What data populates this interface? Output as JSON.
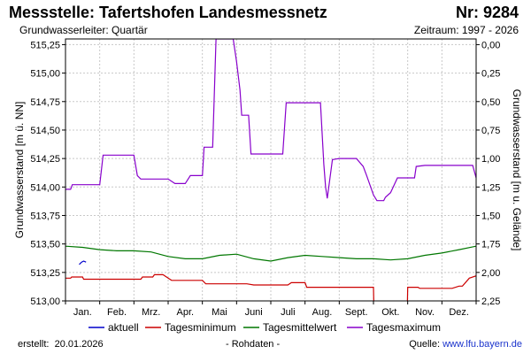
{
  "header": {
    "title": "Messstelle: Tafertshofen Landesmessnetz",
    "number": "Nr: 9284",
    "subtitle_left": "Grundwasserleiter: Quartär",
    "subtitle_right": "Zeitraum: 1997 - 2026"
  },
  "footer": {
    "created_label": "erstellt:",
    "created_date": "20.01.2026",
    "raw": "- Rohdaten -",
    "source_label": "Quelle:",
    "source_url": "www.lfu.bayern.de"
  },
  "colors": {
    "aktuell": "#0000cc",
    "min": "#cc0000",
    "mean": "#007700",
    "max": "#8800cc",
    "grid": "#c8c8c8"
  },
  "chart_data": {
    "type": "line",
    "ylabel_left": "Grundwasserstand [m ü. NN]",
    "ylabel_right": "Grundwasserstand [m u. Gelände]",
    "ylim": [
      513.0,
      515.3
    ],
    "yticks_left": [
      "515,25",
      "515,00",
      "514,75",
      "514,50",
      "514,25",
      "514,00",
      "513,75",
      "513,50",
      "513,25",
      "513,00"
    ],
    "yticks_left_values": [
      515.25,
      515.0,
      514.75,
      514.5,
      514.25,
      514.0,
      513.75,
      513.5,
      513.25,
      513.0
    ],
    "yticks_right": [
      "0,00",
      "0,25",
      "0,50",
      "0,75",
      "1,00",
      "1,25",
      "1,50",
      "1,75",
      "2,00",
      "2,25"
    ],
    "yticks_right_depths": [
      0.0,
      0.25,
      0.5,
      0.75,
      1.0,
      1.25,
      1.5,
      1.75,
      2.0,
      2.25
    ],
    "ground_level": 515.25,
    "months": [
      "Jan.",
      "Feb.",
      "Mrz.",
      "Apr.",
      "Mai",
      "Juni",
      "Juli",
      "Aug.",
      "Sept.",
      "Okt.",
      "Nov.",
      "Dez."
    ],
    "series": [
      {
        "name": "aktuell",
        "key": "aktuell",
        "points": [
          [
            0.4,
            513.32
          ],
          [
            0.47,
            513.34
          ],
          [
            0.53,
            513.35
          ],
          [
            0.6,
            513.34
          ]
        ]
      },
      {
        "name": "Tagesminimum",
        "key": "min",
        "points": [
          [
            0.0,
            513.2
          ],
          [
            0.15,
            513.2
          ],
          [
            0.18,
            513.21
          ],
          [
            0.5,
            513.21
          ],
          [
            0.53,
            513.19
          ],
          [
            1.0,
            513.19
          ],
          [
            1.5,
            513.19
          ],
          [
            2.0,
            513.19
          ],
          [
            2.2,
            513.19
          ],
          [
            2.25,
            513.21
          ],
          [
            2.55,
            513.21
          ],
          [
            2.6,
            513.23
          ],
          [
            2.85,
            513.23
          ],
          [
            3.0,
            513.2
          ],
          [
            3.1,
            513.18
          ],
          [
            3.5,
            513.18
          ],
          [
            4.0,
            513.18
          ],
          [
            4.1,
            513.15
          ],
          [
            4.7,
            513.15
          ],
          [
            5.0,
            513.15
          ],
          [
            5.3,
            513.15
          ],
          [
            5.5,
            513.14
          ],
          [
            6.0,
            513.14
          ],
          [
            6.5,
            513.14
          ],
          [
            6.6,
            513.16
          ],
          [
            7.0,
            513.16
          ],
          [
            7.05,
            513.12
          ],
          [
            8.0,
            513.12
          ],
          [
            9.0,
            513.12
          ],
          [
            9.01,
            512.97
          ],
          [
            9.99,
            512.97
          ],
          [
            10.0,
            513.12
          ],
          [
            10.3,
            513.12
          ],
          [
            10.35,
            513.11
          ],
          [
            11.3,
            513.11
          ],
          [
            11.5,
            513.13
          ],
          [
            11.6,
            513.13
          ],
          [
            11.8,
            513.2
          ],
          [
            12.0,
            513.22
          ]
        ]
      },
      {
        "name": "Tagesmittelwert",
        "key": "mean",
        "points": [
          [
            0.0,
            513.48
          ],
          [
            0.5,
            513.47
          ],
          [
            1.0,
            513.45
          ],
          [
            1.5,
            513.44
          ],
          [
            2.0,
            513.44
          ],
          [
            2.5,
            513.43
          ],
          [
            3.0,
            513.39
          ],
          [
            3.5,
            513.37
          ],
          [
            4.0,
            513.37
          ],
          [
            4.5,
            513.4
          ],
          [
            5.0,
            513.41
          ],
          [
            5.5,
            513.37
          ],
          [
            6.0,
            513.35
          ],
          [
            6.5,
            513.38
          ],
          [
            7.0,
            513.4
          ],
          [
            7.5,
            513.39
          ],
          [
            8.0,
            513.38
          ],
          [
            8.5,
            513.37
          ],
          [
            9.0,
            513.37
          ],
          [
            9.5,
            513.36
          ],
          [
            10.0,
            513.37
          ],
          [
            10.5,
            513.4
          ],
          [
            11.0,
            513.42
          ],
          [
            11.5,
            513.45
          ],
          [
            12.0,
            513.48
          ]
        ]
      },
      {
        "name": "Tagesmaximum",
        "key": "max",
        "points": [
          [
            0.0,
            513.98
          ],
          [
            0.15,
            513.98
          ],
          [
            0.2,
            514.02
          ],
          [
            1.0,
            514.02
          ],
          [
            1.1,
            514.28
          ],
          [
            1.5,
            514.28
          ],
          [
            2.0,
            514.28
          ],
          [
            2.1,
            514.1
          ],
          [
            2.2,
            514.07
          ],
          [
            2.5,
            514.07
          ],
          [
            3.0,
            514.07
          ],
          [
            3.2,
            514.03
          ],
          [
            3.5,
            514.03
          ],
          [
            3.65,
            514.1
          ],
          [
            4.0,
            514.1
          ],
          [
            4.05,
            514.35
          ],
          [
            4.3,
            514.35
          ],
          [
            4.4,
            515.3
          ],
          [
            4.45,
            515.3
          ],
          [
            4.9,
            515.3
          ],
          [
            5.0,
            515.1
          ],
          [
            5.1,
            514.85
          ],
          [
            5.15,
            514.63
          ],
          [
            5.35,
            514.63
          ],
          [
            5.42,
            514.29
          ],
          [
            6.0,
            514.29
          ],
          [
            6.35,
            514.29
          ],
          [
            6.45,
            514.74
          ],
          [
            6.9,
            514.74
          ],
          [
            7.45,
            514.74
          ],
          [
            7.55,
            514.2
          ],
          [
            7.6,
            514.0
          ],
          [
            7.65,
            513.9
          ],
          [
            7.8,
            514.24
          ],
          [
            8.0,
            514.25
          ],
          [
            8.5,
            514.25
          ],
          [
            8.7,
            514.18
          ],
          [
            8.8,
            514.1
          ],
          [
            9.0,
            513.93
          ],
          [
            9.1,
            513.88
          ],
          [
            9.3,
            513.88
          ],
          [
            9.35,
            513.91
          ],
          [
            9.5,
            513.95
          ],
          [
            9.7,
            514.08
          ],
          [
            10.0,
            514.08
          ],
          [
            10.2,
            514.08
          ],
          [
            10.25,
            514.18
          ],
          [
            10.5,
            514.19
          ],
          [
            11.5,
            514.19
          ],
          [
            11.9,
            514.19
          ],
          [
            12.0,
            514.08
          ]
        ]
      }
    ],
    "legend": [
      "aktuell",
      "Tagesminimum",
      "Tagesmittelwert",
      "Tagesmaximum"
    ],
    "legend_placement": "bottom",
    "grid": true
  }
}
